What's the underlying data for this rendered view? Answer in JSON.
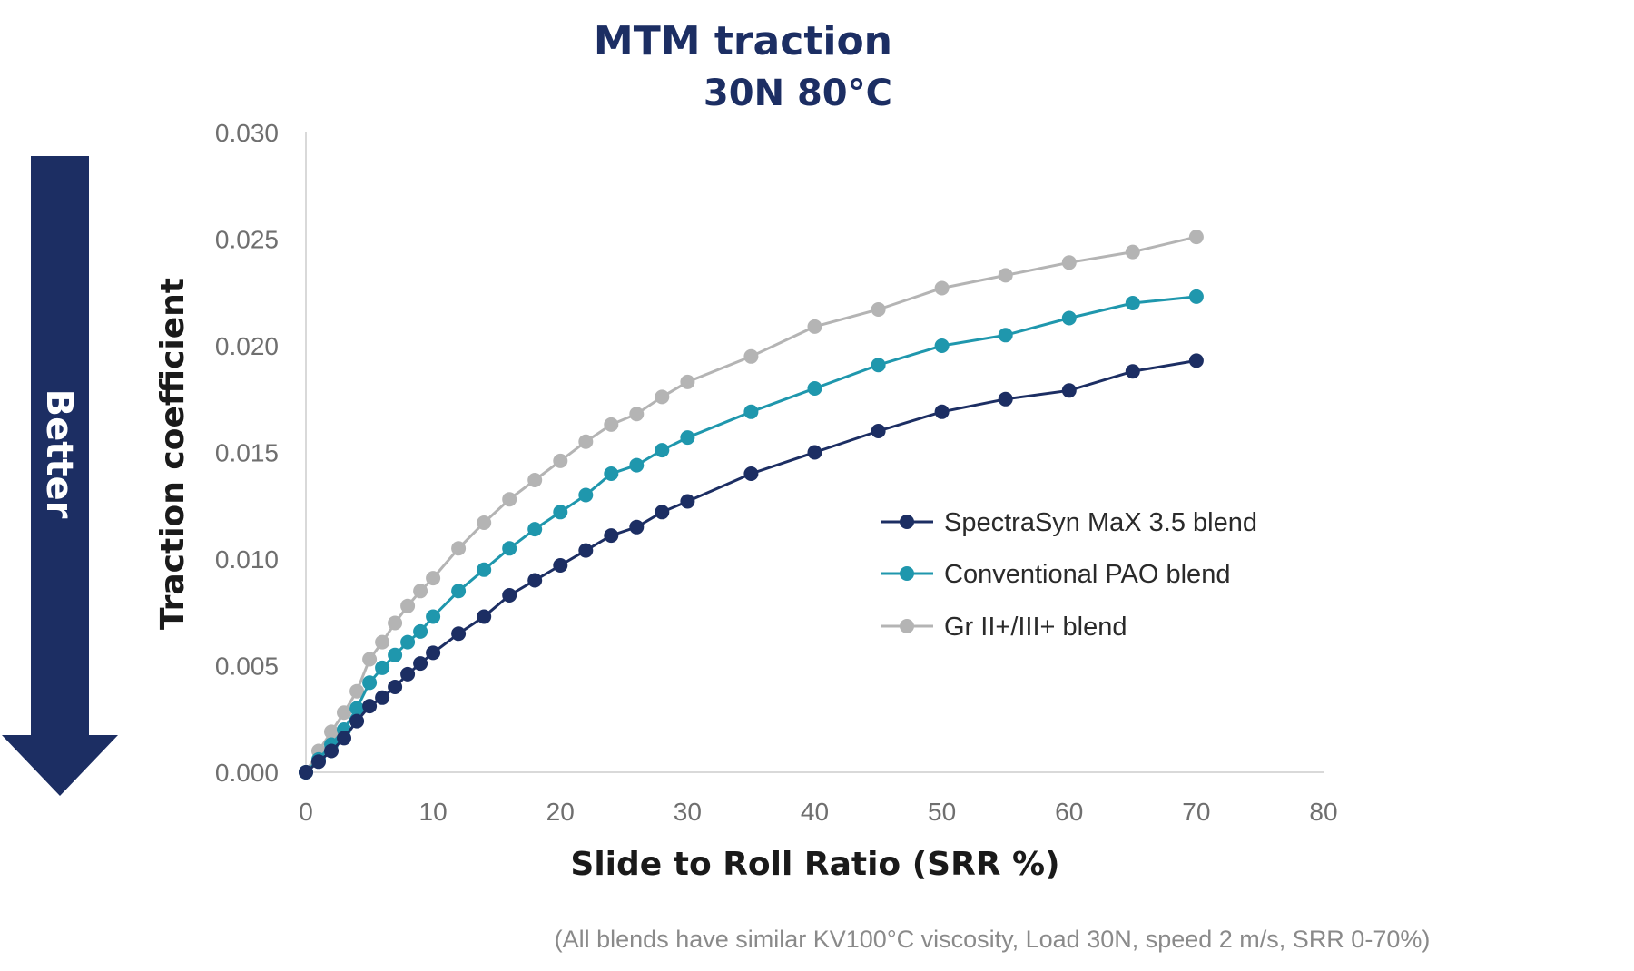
{
  "colors": {
    "spectrasyn": "#1c2e63",
    "conventional": "#1f97ad",
    "grii": "#b4b4b4",
    "title": "#1c2e63",
    "arrow": "#1c2e63",
    "axis": "#d9d9d9"
  },
  "arrow": {
    "label": "Better"
  },
  "footnote": "(All blends have similar KV100°C viscosity, Load 30N, speed 2 m/s, SRR 0-70%)",
  "chart_data": {
    "type": "line",
    "title": "MTM traction",
    "subtitle": "30N 80°C",
    "xlabel": "Slide to Roll Ratio (SRR %)",
    "ylabel": "Traction coefficient",
    "xlim": [
      0,
      80
    ],
    "ylim": [
      0,
      0.03
    ],
    "x_ticks": [
      "0",
      "10",
      "20",
      "30",
      "40",
      "50",
      "60",
      "70",
      "80"
    ],
    "y_ticks": [
      "0.000",
      "0.005",
      "0.010",
      "0.015",
      "0.020",
      "0.025",
      "0.030"
    ],
    "grid": false,
    "legend_position": "right",
    "series": [
      {
        "name": "SpectraSyn MaX 3.5 blend",
        "color_key": "spectrasyn",
        "points": [
          [
            0,
            0.0
          ],
          [
            1,
            0.0005
          ],
          [
            2,
            0.001
          ],
          [
            3,
            0.0016
          ],
          [
            4,
            0.0024
          ],
          [
            5,
            0.0031
          ],
          [
            6,
            0.0035
          ],
          [
            7,
            0.004
          ],
          [
            8,
            0.0046
          ],
          [
            9,
            0.0051
          ],
          [
            10,
            0.0056
          ],
          [
            12,
            0.0065
          ],
          [
            14,
            0.0073
          ],
          [
            16,
            0.0083
          ],
          [
            18,
            0.009
          ],
          [
            20,
            0.0097
          ],
          [
            22,
            0.0104
          ],
          [
            24,
            0.0111
          ],
          [
            26,
            0.0115
          ],
          [
            28,
            0.0122
          ],
          [
            30,
            0.0127
          ],
          [
            35,
            0.014
          ],
          [
            40,
            0.015
          ],
          [
            45,
            0.016
          ],
          [
            50,
            0.0169
          ],
          [
            55,
            0.0175
          ],
          [
            60,
            0.0179
          ],
          [
            65,
            0.0188
          ],
          [
            70,
            0.0193
          ]
        ]
      },
      {
        "name": "Conventional PAO blend",
        "color_key": "conventional",
        "points": [
          [
            0,
            0.0
          ],
          [
            1,
            0.0006
          ],
          [
            2,
            0.0013
          ],
          [
            3,
            0.002
          ],
          [
            4,
            0.003
          ],
          [
            5,
            0.0042
          ],
          [
            6,
            0.0049
          ],
          [
            7,
            0.0055
          ],
          [
            8,
            0.0061
          ],
          [
            9,
            0.0066
          ],
          [
            10,
            0.0073
          ],
          [
            12,
            0.0085
          ],
          [
            14,
            0.0095
          ],
          [
            16,
            0.0105
          ],
          [
            18,
            0.0114
          ],
          [
            20,
            0.0122
          ],
          [
            22,
            0.013
          ],
          [
            24,
            0.014
          ],
          [
            26,
            0.0144
          ],
          [
            28,
            0.0151
          ],
          [
            30,
            0.0157
          ],
          [
            35,
            0.0169
          ],
          [
            40,
            0.018
          ],
          [
            45,
            0.0191
          ],
          [
            50,
            0.02
          ],
          [
            55,
            0.0205
          ],
          [
            60,
            0.0213
          ],
          [
            65,
            0.022
          ],
          [
            70,
            0.0223
          ]
        ]
      },
      {
        "name": "Gr II+/III+ blend",
        "color_key": "grii",
        "points": [
          [
            0,
            0.0
          ],
          [
            1,
            0.001
          ],
          [
            2,
            0.0019
          ],
          [
            3,
            0.0028
          ],
          [
            4,
            0.0038
          ],
          [
            5,
            0.0053
          ],
          [
            6,
            0.0061
          ],
          [
            7,
            0.007
          ],
          [
            8,
            0.0078
          ],
          [
            9,
            0.0085
          ],
          [
            10,
            0.0091
          ],
          [
            12,
            0.0105
          ],
          [
            14,
            0.0117
          ],
          [
            16,
            0.0128
          ],
          [
            18,
            0.0137
          ],
          [
            20,
            0.0146
          ],
          [
            22,
            0.0155
          ],
          [
            24,
            0.0163
          ],
          [
            26,
            0.0168
          ],
          [
            28,
            0.0176
          ],
          [
            30,
            0.0183
          ],
          [
            35,
            0.0195
          ],
          [
            40,
            0.0209
          ],
          [
            45,
            0.0217
          ],
          [
            50,
            0.0227
          ],
          [
            55,
            0.0233
          ],
          [
            60,
            0.0239
          ],
          [
            65,
            0.0244
          ],
          [
            70,
            0.0251
          ]
        ]
      }
    ]
  }
}
